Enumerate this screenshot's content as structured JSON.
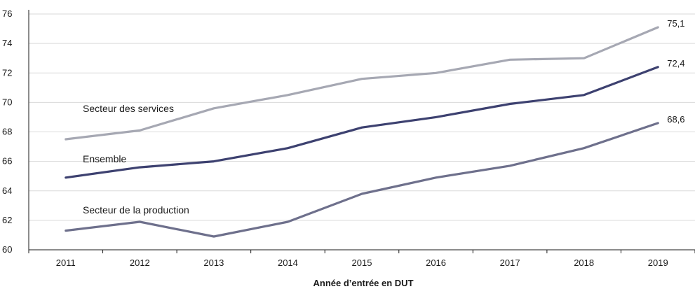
{
  "chart_data": {
    "type": "line",
    "categories": [
      "2011",
      "2012",
      "2013",
      "2014",
      "2015",
      "2016",
      "2017",
      "2018",
      "2019"
    ],
    "ylim": [
      60,
      76
    ],
    "yticks": [
      "60",
      "62",
      "64",
      "66",
      "68",
      "70",
      "72",
      "74",
      "76"
    ],
    "xlabel": "Année d’entrée en DUT",
    "ylabel": "",
    "grid": "horizontal",
    "series": [
      {
        "name": "Secteur des services",
        "color": "#a6a8b3",
        "values": [
          67.5,
          68.1,
          69.6,
          70.5,
          71.6,
          72.0,
          72.9,
          73.0,
          75.1
        ],
        "end_label": "75,1"
      },
      {
        "name": "Ensemble",
        "color": "#3d4170",
        "values": [
          64.9,
          65.6,
          66.0,
          66.9,
          68.3,
          69.0,
          69.9,
          70.5,
          72.4
        ],
        "end_label": "72,4"
      },
      {
        "name": "Secteur de la production",
        "color": "#6e708c",
        "values": [
          61.3,
          61.9,
          60.9,
          61.9,
          63.8,
          64.9,
          65.7,
          66.9,
          68.6
        ],
        "end_label": "68,6"
      }
    ]
  }
}
